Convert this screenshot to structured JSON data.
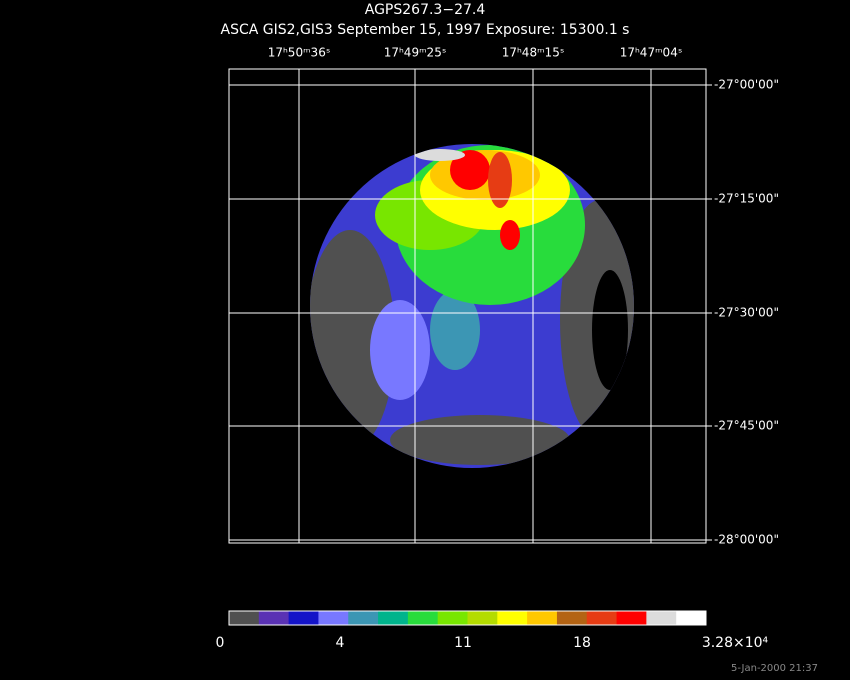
{
  "title": "AGPS267.3−27.4",
  "subtitle": "ASCA GIS2,GIS3 September 15, 1997 Exposure: 15300.1 s",
  "ra_labels": [
    "17ʰ50ᵐ36ˢ",
    "17ʰ49ᵐ25ˢ",
    "17ʰ48ᵐ15ˢ",
    "17ʰ47ᵐ04ˢ"
  ],
  "dec_labels": [
    "-27°00'00\"",
    "-27°15'00\"",
    "-27°30'00\"",
    "-27°45'00\"",
    "-28°00'00\""
  ],
  "colorbar": {
    "colors": [
      "#505050",
      "#5a32b4",
      "#1414c8",
      "#7878ff",
      "#3c96b4",
      "#00b48c",
      "#28dc3c",
      "#78e600",
      "#b4dc00",
      "#ffff00",
      "#ffc800",
      "#b46414",
      "#e63c14",
      "#ff0000",
      "#dcdcdc",
      "#ffffff"
    ],
    "labels": [
      "0",
      "4",
      "11",
      "18",
      "3.28×10⁴"
    ]
  },
  "footer": "5-Jan-2000 21:37"
}
